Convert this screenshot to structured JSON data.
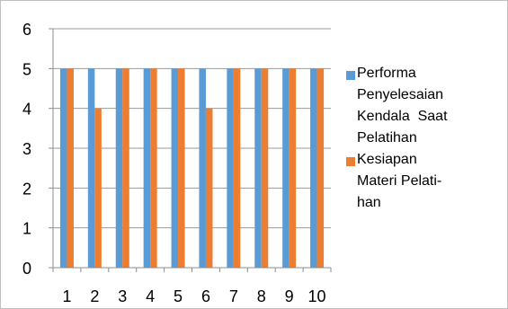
{
  "chart_data": {
    "type": "bar",
    "categories": [
      "1",
      "2",
      "3",
      "4",
      "5",
      "6",
      "7",
      "8",
      "9",
      "10"
    ],
    "series": [
      {
        "name": "Performa Penyelesaian Kendala  Saat Pelatihan",
        "color": "#5b9bd5",
        "values": [
          5,
          5,
          5,
          5,
          5,
          5,
          5,
          5,
          5,
          5
        ]
      },
      {
        "name": "Kesiapan Materi Pelati-han",
        "color": "#ed7d31",
        "values": [
          5,
          4,
          5,
          5,
          5,
          4,
          5,
          5,
          5,
          5
        ]
      }
    ],
    "y_ticks": [
      "0",
      "1",
      "2",
      "3",
      "4",
      "5",
      "6"
    ],
    "ylim": [
      0,
      6
    ],
    "grid": true,
    "legend_position": "right"
  },
  "legend": {
    "series1_lines": [
      "Performa",
      "Penyelesaian",
      "Kendala  Saat",
      "Pelatihan"
    ],
    "series2_lines": [
      "Kesiapan",
      "Materi Pelati-",
      "han"
    ]
  }
}
